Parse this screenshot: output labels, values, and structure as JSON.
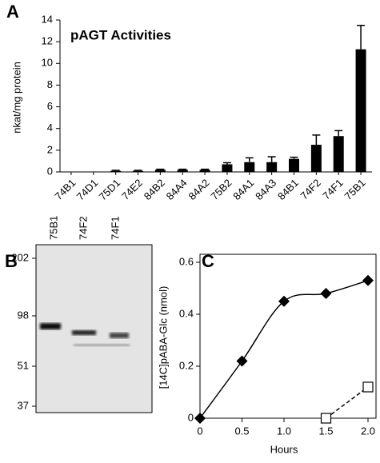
{
  "chart_data": [
    {
      "type": "bar",
      "panel": "A",
      "title": "pAGT Activities",
      "ylabel": "nkat/mg protein",
      "categories": [
        "74B1",
        "74D1",
        "75D1",
        "74E2",
        "84B2",
        "84A4",
        "84A2",
        "75B2",
        "84A1",
        "84A3",
        "84B1",
        "74F2",
        "74F1",
        "75B1"
      ],
      "values": [
        0,
        0,
        0.1,
        0.1,
        0.2,
        0.2,
        0.2,
        0.7,
        0.9,
        0.9,
        1.2,
        2.5,
        3.3,
        11.3
      ],
      "errors": [
        0,
        0,
        0.05,
        0.05,
        0.05,
        0.05,
        0.05,
        0.15,
        0.4,
        0.5,
        0.15,
        0.9,
        0.5,
        2.2
      ],
      "color": "#000000",
      "ylim": [
        0,
        14
      ],
      "yticks": [
        0,
        2,
        4,
        6,
        8,
        10,
        12,
        14
      ]
    },
    {
      "type": "scatter",
      "panel": "C",
      "xlabel": "Hours",
      "ylabel": "[14C]pABA-Glc (nmol)",
      "xlim": [
        0,
        2
      ],
      "xticks": [
        0,
        0.5,
        {
          "value": 1,
          "label": "1.0"
        },
        1.5,
        {
          "value": 2,
          "label": "2.0"
        }
      ],
      "ylim": [
        0,
        0.6
      ],
      "yticks": [
        0,
        0.2,
        0.4,
        0.6
      ],
      "series": [
        {
          "marker": "diamond",
          "line": "solid",
          "color": "#000000",
          "x": [
            0,
            0.5,
            1,
            1.5,
            2
          ],
          "values": [
            0,
            0.22,
            0.45,
            0.48,
            0.53
          ]
        },
        {
          "marker": "open-square",
          "line": "dashed",
          "color": "#000000",
          "x": [
            1.5,
            2
          ],
          "values": [
            0,
            0.12
          ]
        }
      ]
    }
  ],
  "gel": {
    "panel": "B",
    "lanes": [
      "75B1",
      "74F2",
      "74F1"
    ],
    "markers": [
      "202",
      "98",
      "51",
      "37"
    ]
  }
}
